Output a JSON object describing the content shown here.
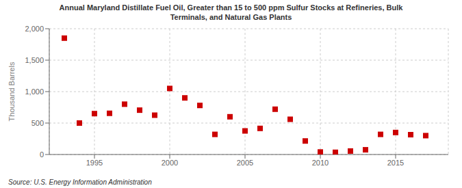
{
  "chart_data": {
    "type": "scatter",
    "title": "Annual Maryland Distillate Fuel Oil, Greater than 15 to 500 ppm Sulfur Stocks at Refineries, Bulk\nTerminals, and Natural Gas Plants",
    "y_label": "Thousand Barrels",
    "source": "Source: U.S. Energy Information Administration",
    "x": [
      1993,
      1994,
      1995,
      1996,
      1997,
      1998,
      1999,
      2000,
      2001,
      2002,
      2003,
      2004,
      2005,
      2006,
      2007,
      2008,
      2009,
      2010,
      2011,
      2012,
      2013,
      2014,
      2015,
      2016,
      2017
    ],
    "values": [
      1850,
      500,
      650,
      655,
      800,
      705,
      625,
      1050,
      900,
      780,
      320,
      600,
      375,
      415,
      720,
      560,
      215,
      40,
      35,
      55,
      75,
      320,
      350,
      315,
      300
    ],
    "color": "#cc0000",
    "marker": "square",
    "xlim": [
      1992,
      2018.5
    ],
    "xticks": [
      1995,
      2000,
      2005,
      2010,
      2015
    ],
    "ylim": [
      0,
      2000
    ],
    "yticks": [
      0,
      500,
      {
        "value": 1000,
        "label": "1,000"
      },
      {
        "value": 1500,
        "label": "1,500"
      },
      {
        "value": 2000,
        "label": "2,000"
      }
    ],
    "grid": true
  }
}
